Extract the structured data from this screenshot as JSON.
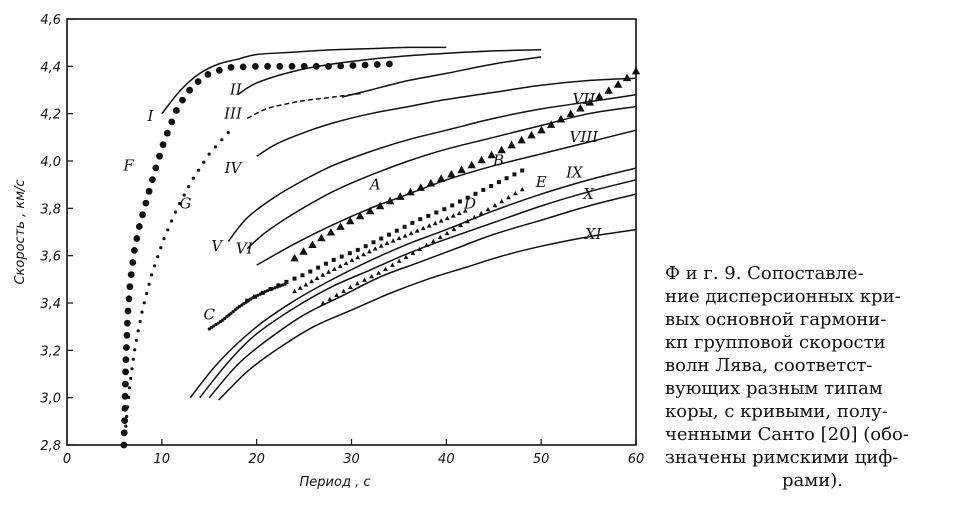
{
  "caption": {
    "line1": "Ф и г.  9.  Сопоставле-",
    "line2": "ние дисперсионных кри-",
    "line3": "вых  основной гармони-",
    "line4": "кп  групповой  скорости",
    "line5": "волн  Лява,  соответст-",
    "line6": "вующих  разным  типам",
    "line7": "коры, с кривыми, полу-",
    "line8": "ченными Санто [20] (обо-",
    "line9": "значены  римскими циф-",
    "line10": "рами)."
  },
  "chart_data": {
    "type": "line",
    "xlabel": "Период , с",
    "ylabel": "Скорость , км/с",
    "xlim": [
      0,
      60
    ],
    "ylim": [
      2.8,
      4.6
    ],
    "xticks": [
      "0",
      "10",
      "20",
      "30",
      "40",
      "50",
      "60"
    ],
    "yticks": [
      "2,8",
      "3,0",
      "3,2",
      "3,4",
      "3,6",
      "3,8",
      "4,0",
      "4,2",
      "4,4",
      "4,6"
    ],
    "grid": false,
    "series": [
      {
        "name": "I",
        "style": "solid",
        "x": [
          10,
          12,
          14,
          16,
          18,
          20,
          24,
          28,
          32,
          36,
          40
        ],
        "y": [
          4.2,
          4.3,
          4.37,
          4.41,
          4.43,
          4.45,
          4.46,
          4.47,
          4.475,
          4.48,
          4.48
        ]
      },
      {
        "name": "II",
        "style": "solid",
        "x": [
          18,
          20,
          24,
          28,
          32,
          36,
          40,
          45,
          50
        ],
        "y": [
          4.28,
          4.33,
          4.38,
          4.41,
          4.43,
          4.445,
          4.455,
          4.465,
          4.47
        ]
      },
      {
        "name": "III",
        "style": "dashed",
        "x": [
          19,
          21,
          23,
          25,
          27,
          29,
          31
        ],
        "y": [
          4.18,
          4.22,
          4.24,
          4.255,
          4.265,
          4.275,
          4.285
        ]
      },
      {
        "name": "III",
        "style": "solid",
        "x": [
          29,
          32,
          36,
          40,
          45,
          50
        ],
        "y": [
          4.27,
          4.3,
          4.34,
          4.37,
          4.41,
          4.44
        ]
      },
      {
        "name": "IV",
        "style": "solid",
        "x": [
          20,
          22,
          25,
          28,
          32,
          36,
          40,
          45,
          50,
          55,
          60
        ],
        "y": [
          4.02,
          4.07,
          4.12,
          4.16,
          4.2,
          4.23,
          4.26,
          4.29,
          4.32,
          4.34,
          4.35
        ]
      },
      {
        "name": "V",
        "style": "solid",
        "x": [
          17,
          19,
          22,
          25,
          28,
          32,
          36,
          40,
          45,
          50,
          55,
          60
        ],
        "y": [
          3.66,
          3.76,
          3.85,
          3.92,
          3.98,
          4.04,
          4.09,
          4.13,
          4.18,
          4.22,
          4.25,
          4.28
        ]
      },
      {
        "name": "VI",
        "style": "solid",
        "x": [
          19,
          21,
          24,
          28,
          32,
          36,
          40,
          45,
          50,
          55,
          60
        ],
        "y": [
          3.63,
          3.7,
          3.78,
          3.87,
          3.94,
          4.0,
          4.05,
          4.1,
          4.15,
          4.2,
          4.23
        ]
      },
      {
        "name": "VII",
        "style": "solid",
        "x": [
          20,
          24,
          28,
          32,
          36,
          40,
          45,
          50,
          55,
          60
        ],
        "y": [
          3.56,
          3.65,
          3.73,
          3.8,
          3.86,
          3.92,
          3.98,
          4.03,
          4.08,
          4.13
        ]
      },
      {
        "name": "VIII",
        "style": "solid",
        "x": [
          13,
          16,
          20,
          24,
          28,
          32,
          36,
          40,
          45,
          50,
          55,
          60
        ],
        "y": [
          3.0,
          3.15,
          3.3,
          3.41,
          3.5,
          3.58,
          3.65,
          3.71,
          3.79,
          3.86,
          3.92,
          3.97
        ]
      },
      {
        "name": "IX",
        "style": "solid",
        "x": [
          14,
          17,
          20,
          24,
          28,
          32,
          36,
          40,
          45,
          50,
          55,
          60
        ],
        "y": [
          3.0,
          3.15,
          3.27,
          3.38,
          3.47,
          3.54,
          3.61,
          3.67,
          3.74,
          3.81,
          3.87,
          3.92
        ]
      },
      {
        "name": "X",
        "style": "solid",
        "x": [
          15,
          18,
          21,
          25,
          29,
          33,
          37,
          41,
          45,
          50,
          55,
          60
        ],
        "y": [
          3.0,
          3.14,
          3.24,
          3.35,
          3.43,
          3.51,
          3.57,
          3.63,
          3.69,
          3.75,
          3.81,
          3.86
        ]
      },
      {
        "name": "XI",
        "style": "solid",
        "x": [
          16,
          19,
          22,
          26,
          30,
          34,
          38,
          42,
          46,
          50,
          55,
          60
        ],
        "y": [
          2.99,
          3.11,
          3.2,
          3.3,
          3.37,
          3.44,
          3.5,
          3.55,
          3.6,
          3.64,
          3.68,
          3.71
        ]
      },
      {
        "name": "F",
        "style": "big-dots",
        "x": [
          6,
          6.1,
          6.2,
          6.4,
          6.7,
          7.1,
          7.6,
          8.3,
          9.2,
          10.3,
          11.7,
          13.3,
          15,
          17,
          20,
          24,
          28,
          31,
          34
        ],
        "y": [
          2.8,
          2.95,
          3.15,
          3.35,
          3.5,
          3.62,
          3.72,
          3.82,
          3.95,
          4.09,
          4.23,
          4.32,
          4.37,
          4.395,
          4.4,
          4.4,
          4.4,
          4.405,
          4.41
        ]
      },
      {
        "name": "G",
        "style": "small-dots",
        "x": [
          6.2,
          6.6,
          7.2,
          8.0,
          9.0,
          10.2,
          11.6,
          13.2,
          15,
          17
        ],
        "y": [
          2.88,
          3.05,
          3.22,
          3.38,
          3.53,
          3.67,
          3.8,
          3.92,
          4.03,
          4.12
        ]
      },
      {
        "name": "A",
        "style": "big-triangles",
        "x": [
          24,
          27,
          30,
          34,
          38,
          42,
          46,
          50,
          54,
          58,
          60
        ],
        "y": [
          3.59,
          3.68,
          3.75,
          3.83,
          3.9,
          3.97,
          4.05,
          4.13,
          4.22,
          4.32,
          4.38
        ]
      },
      {
        "name": "B",
        "style": "squares",
        "x": [
          19,
          22,
          25,
          28,
          31,
          34,
          37,
          40,
          43,
          46,
          48
        ],
        "y": [
          3.41,
          3.47,
          3.52,
          3.58,
          3.63,
          3.69,
          3.75,
          3.8,
          3.86,
          3.92,
          3.96
        ]
      },
      {
        "name": "C",
        "style": "small-dots",
        "x": [
          15,
          16.5,
          18,
          19.5,
          21,
          23
        ],
        "y": [
          3.29,
          3.33,
          3.38,
          3.42,
          3.45,
          3.48
        ]
      },
      {
        "name": "D",
        "style": "small-triangles",
        "x": [
          24,
          27,
          30,
          33,
          36,
          39,
          42
        ],
        "y": [
          3.45,
          3.52,
          3.58,
          3.64,
          3.69,
          3.74,
          3.79
        ]
      },
      {
        "name": "E",
        "style": "small-triangles",
        "x": [
          27,
          30,
          33,
          36,
          39,
          42,
          45,
          48
        ],
        "y": [
          3.4,
          3.47,
          3.53,
          3.6,
          3.67,
          3.74,
          3.81,
          3.88
        ]
      }
    ],
    "labels": [
      {
        "text": "I",
        "x": 8.8,
        "y": 4.17
      },
      {
        "text": "II",
        "x": 17.8,
        "y": 4.28
      },
      {
        "text": "III",
        "x": 17.5,
        "y": 4.18
      },
      {
        "text": "IV",
        "x": 17.5,
        "y": 3.95
      },
      {
        "text": "V",
        "x": 15.8,
        "y": 3.62
      },
      {
        "text": "VI",
        "x": 18.7,
        "y": 3.61
      },
      {
        "text": "VII",
        "x": 54.5,
        "y": 4.24
      },
      {
        "text": "VIII",
        "x": 54.5,
        "y": 4.08
      },
      {
        "text": "IX",
        "x": 53.5,
        "y": 3.93
      },
      {
        "text": "X",
        "x": 55.0,
        "y": 3.84
      },
      {
        "text": "XI",
        "x": 55.5,
        "y": 3.67
      },
      {
        "text": "F",
        "x": 6.5,
        "y": 3.96
      },
      {
        "text": "G",
        "x": 12.5,
        "y": 3.8
      },
      {
        "text": "A",
        "x": 32.5,
        "y": 3.88
      },
      {
        "text": "B",
        "x": 45.5,
        "y": 3.98
      },
      {
        "text": "C",
        "x": 15.0,
        "y": 3.33
      },
      {
        "text": "D",
        "x": 42.5,
        "y": 3.8
      },
      {
        "text": "E",
        "x": 50.0,
        "y": 3.89
      }
    ]
  }
}
